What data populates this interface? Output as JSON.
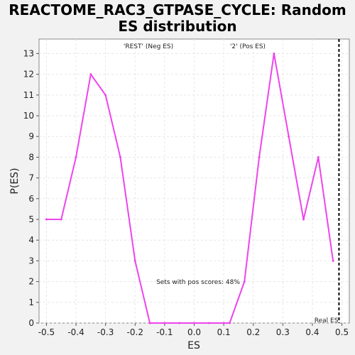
{
  "chart_data": {
    "type": "line",
    "title_line1": "REACTOME_RAC3_GTPASE_CYCLE: Random",
    "title_line2": "ES distribution",
    "xlabel": "ES",
    "ylabel": "P(ES)",
    "xlim": [
      -0.525,
      0.525
    ],
    "ylim": [
      0,
      13.7
    ],
    "x_ticks": [
      -0.5,
      -0.4,
      -0.3,
      -0.2,
      -0.1,
      0.0,
      0.1,
      0.2,
      0.3,
      0.4,
      0.5
    ],
    "x_tick_labels": [
      "-0.5",
      "-0.4",
      "-0.3",
      "-0.2",
      "-0.1",
      "0.0",
      "0.1",
      "0.2",
      "0.3",
      "0.4",
      "0.5"
    ],
    "y_ticks": [
      0,
      1,
      2,
      3,
      4,
      5,
      6,
      7,
      8,
      9,
      10,
      11,
      12,
      13
    ],
    "y_tick_labels": [
      "0",
      "1",
      "2",
      "3",
      "4",
      "5",
      "6",
      "7",
      "8",
      "9",
      "10",
      "11",
      "12",
      "13"
    ],
    "grid": true,
    "series": [
      {
        "color": "#ee44ee",
        "x": [
          -0.5,
          -0.45,
          -0.4,
          -0.35,
          -0.3,
          -0.25,
          -0.2,
          -0.15,
          -0.1,
          -0.05,
          0.0,
          0.05,
          0.1,
          0.12,
          0.17,
          0.22,
          0.27,
          0.32,
          0.37,
          0.42,
          0.47
        ],
        "y": [
          5,
          5,
          8,
          12,
          11,
          8,
          3,
          0,
          0,
          0,
          0,
          0,
          0,
          0,
          2,
          8,
          13,
          9,
          5,
          8,
          3
        ]
      }
    ],
    "real_es": {
      "x": 0.49,
      "label": "Real ES",
      "color": "#000000"
    },
    "annotations": {
      "neg_label": "'REST' (Neg ES)",
      "neg_color": "#2222cc",
      "pos_label": "'2' (Pos ES)",
      "pos_color": "#dd2222",
      "pos_fraction_text": "Sets with pos scores: 48%"
    }
  }
}
